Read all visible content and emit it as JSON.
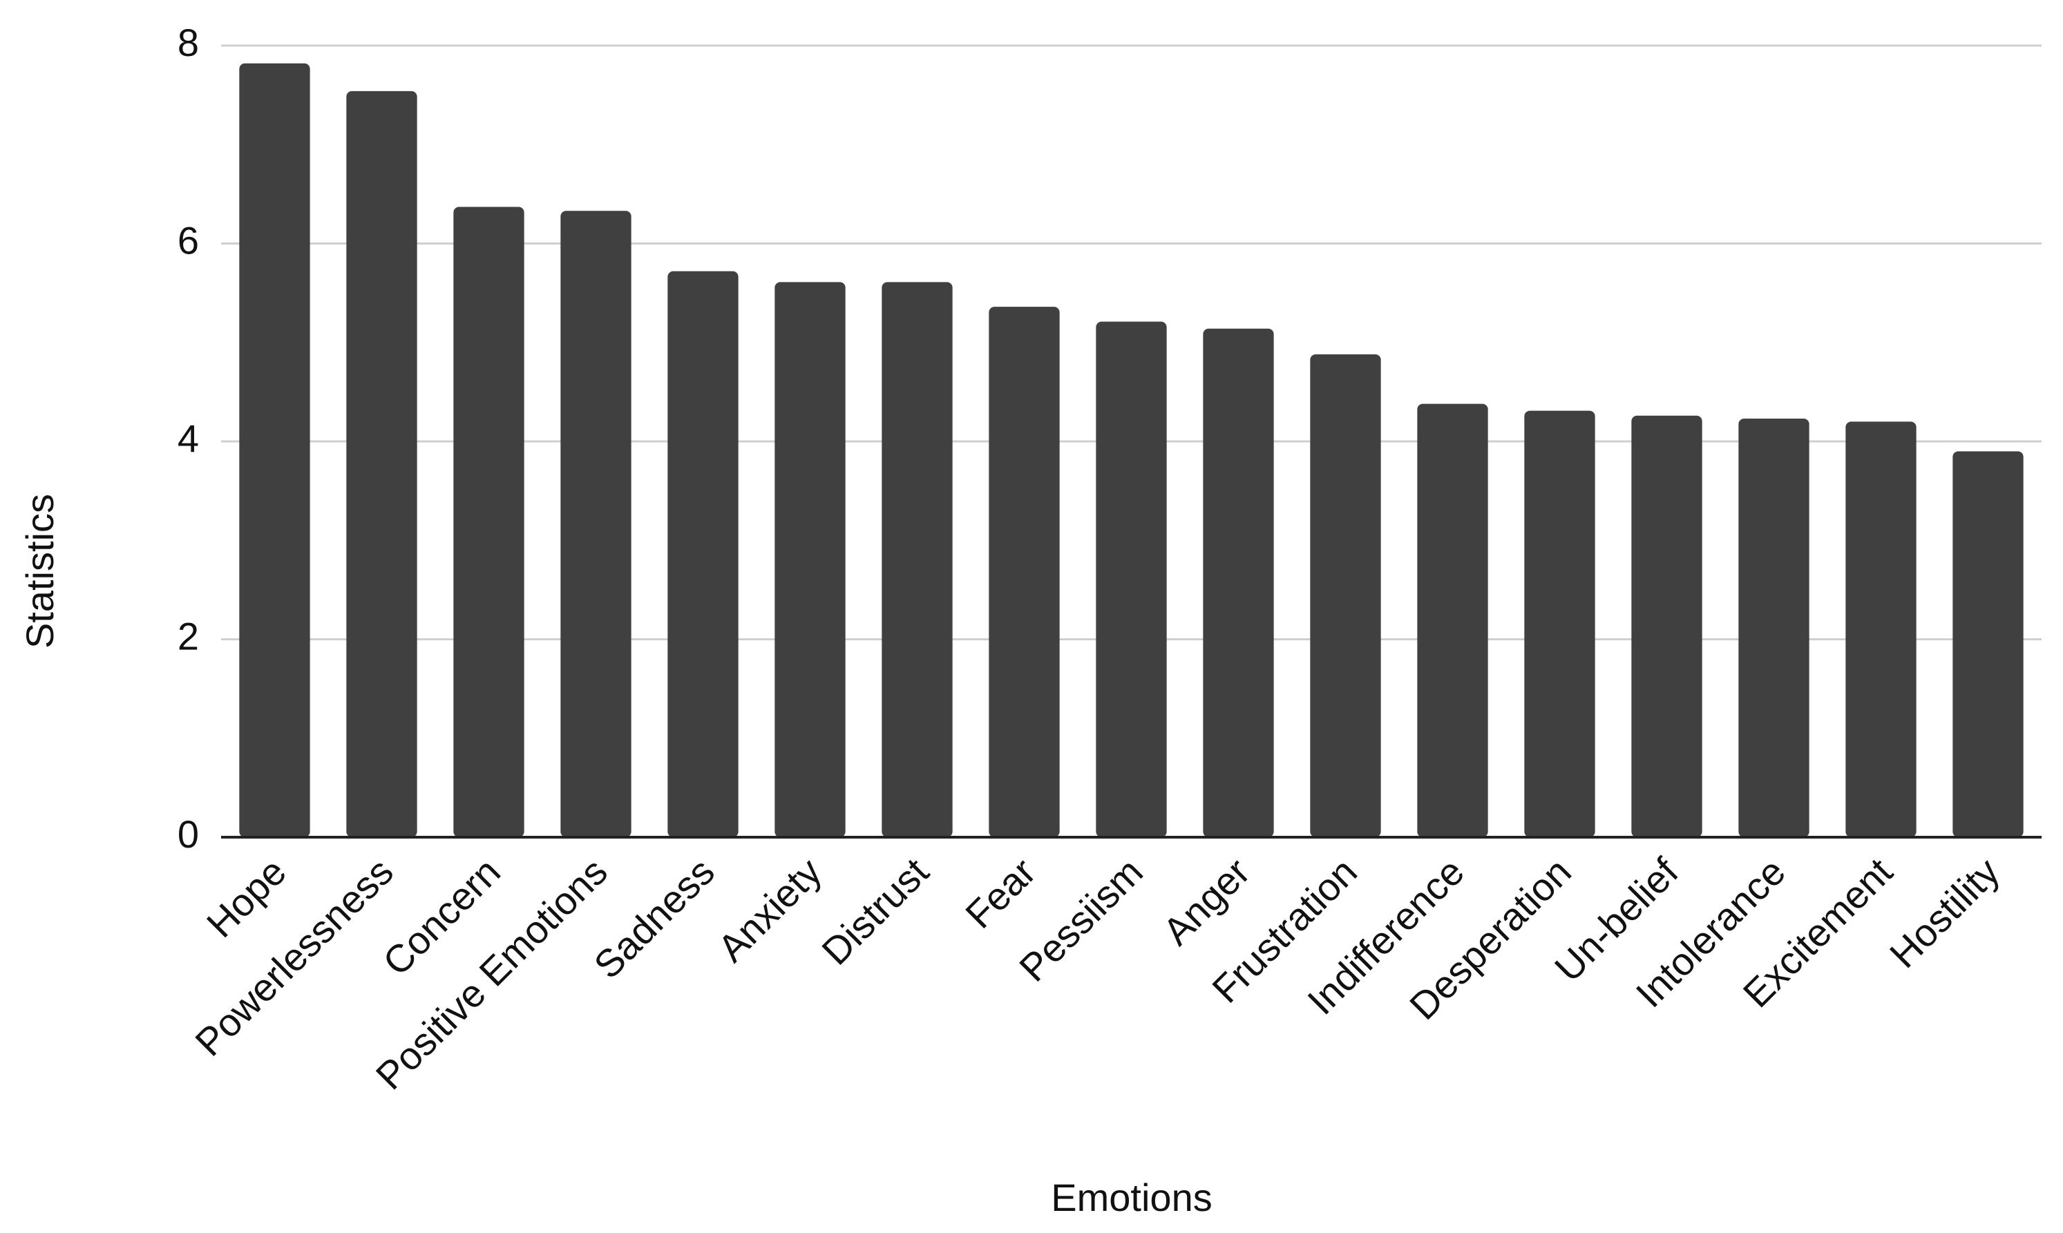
{
  "chart_data": {
    "type": "bar",
    "title": "",
    "xlabel": "Emotions",
    "ylabel": "Statistics",
    "ylim": [
      0,
      8
    ],
    "yticks": [
      0,
      2,
      4,
      6,
      8
    ],
    "grid": true,
    "bar_color": "#404040",
    "categories": [
      "Hope",
      "Powerlessness",
      "Concern",
      "Positive Emotions",
      "Sadness",
      "Anxiety",
      "Distrust",
      "Fear",
      "Pessiism",
      "Anger",
      "Frustration",
      "Indifference",
      "Desperation",
      "Un-belief",
      "Intolerance",
      "Excitement",
      "Hostility"
    ],
    "values": [
      7.82,
      7.54,
      6.37,
      6.33,
      5.72,
      5.61,
      5.61,
      5.36,
      5.21,
      5.14,
      4.88,
      4.38,
      4.31,
      4.26,
      4.23,
      4.2,
      3.9
    ]
  }
}
